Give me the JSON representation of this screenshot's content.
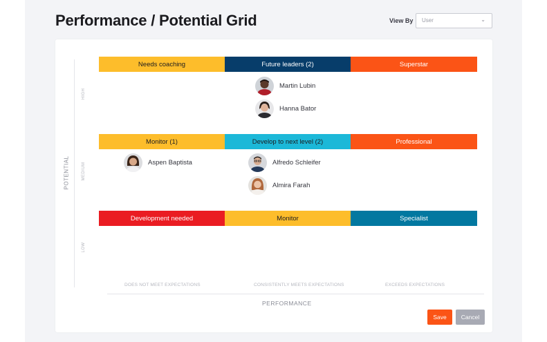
{
  "header": {
    "title": "Performance / Potential Grid",
    "view_by_label": "View By",
    "view_by_value": "User"
  },
  "axes": {
    "y_label": "POTENTIAL",
    "x_label": "PERFORMANCE",
    "rows": [
      "HIGH",
      "MEDIUM",
      "LOW"
    ],
    "columns": [
      "DOES NOT MEET EXPECTATIONS",
      "CONSISTENTLY MEETS EXPECTATIONS",
      "EXCEEDS EXPECTATIONS"
    ]
  },
  "grid": {
    "high": [
      {
        "label": "Needs coaching",
        "color": "#fdbd2b",
        "text_color": "#1b1b1f"
      },
      {
        "label": "Future leaders (2)",
        "color": "#073d6a",
        "text_color": "#ffffff"
      },
      {
        "label": "Superstar",
        "color": "#fb5416",
        "text_color": "#ffffff"
      }
    ],
    "medium": [
      {
        "label": "Monitor (1)",
        "color": "#fdbd2b",
        "text_color": "#1b1b1f"
      },
      {
        "label": "Develop to next level (2)",
        "color": "#1cb8d8",
        "text_color": "#1b1b1f"
      },
      {
        "label": "Professional",
        "color": "#fb5416",
        "text_color": "#ffffff"
      }
    ],
    "low": [
      {
        "label": "Development needed",
        "color": "#ea1c22",
        "text_color": "#ffffff"
      },
      {
        "label": "Monitor",
        "color": "#fdbd2b",
        "text_color": "#1b1b1f"
      },
      {
        "label": "Specialist",
        "color": "#0278a0",
        "text_color": "#ffffff"
      }
    ]
  },
  "people": {
    "martin": "Martin Lubin",
    "hanna": "Hanna Bator",
    "aspen": "Aspen Baptista",
    "alfredo": "Alfredo Schleifer",
    "almira": "Almira Farah"
  },
  "actions": {
    "save_label": "Save",
    "cancel_label": "Cancel"
  }
}
